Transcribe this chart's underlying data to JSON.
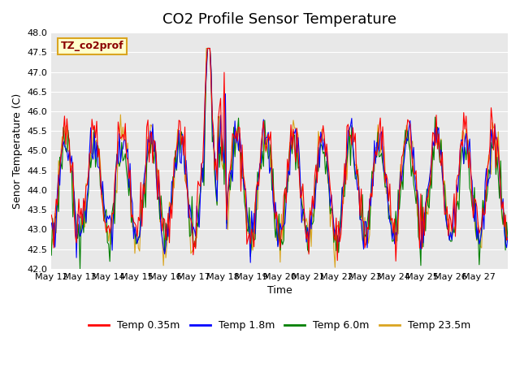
{
  "title": "CO2 Profile Sensor Temperature",
  "ylabel": "Senor Temperature (C)",
  "xlabel": "Time",
  "annotation": "TZ_co2prof",
  "ylim": [
    42.0,
    48.0
  ],
  "yticks": [
    42.0,
    42.5,
    43.0,
    43.5,
    44.0,
    44.5,
    45.0,
    45.5,
    46.0,
    46.5,
    47.0,
    47.5,
    48.0
  ],
  "xtick_labels": [
    "May 12",
    "May 13",
    "May 14",
    "May 15",
    "May 16",
    "May 17",
    "May 18",
    "May 19",
    "May 20",
    "May 21",
    "May 22",
    "May 23",
    "May 24",
    "May 25",
    "May 26",
    "May 27"
  ],
  "series_colors": [
    "red",
    "blue",
    "green",
    "#DAA520"
  ],
  "series_labels": [
    "Temp 0.35m",
    "Temp 1.8m",
    "Temp 6.0m",
    "Temp 23.5m"
  ],
  "plot_bg_color": "#e8e8e8",
  "annotation_bg": "#ffffcc",
  "annotation_border": "#DAA520",
  "annotation_text_color": "#8B0000",
  "title_fontsize": 13,
  "tick_fontsize": 8,
  "legend_fontsize": 9
}
